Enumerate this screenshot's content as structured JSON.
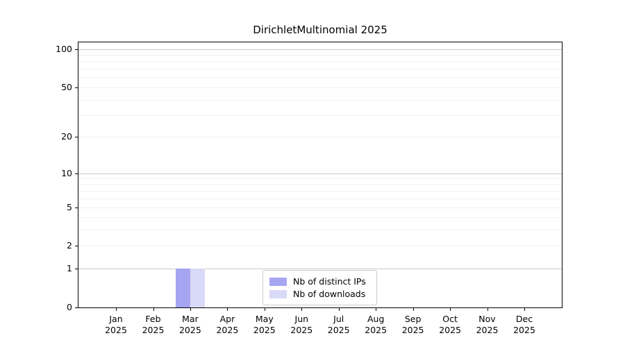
{
  "chart_data": {
    "type": "bar",
    "title": "DirichletMultinomial 2025",
    "categories": [
      "Jan 2025",
      "Feb 2025",
      "Mar 2025",
      "Apr 2025",
      "May 2025",
      "Jun 2025",
      "Jul 2025",
      "Aug 2025",
      "Sep 2025",
      "Oct 2025",
      "Nov 2025",
      "Dec 2025"
    ],
    "series": [
      {
        "name": "Nb of distinct IPs",
        "color": "#a5a5f2",
        "values": [
          0,
          0,
          1,
          0,
          0,
          0,
          0,
          0,
          0,
          0,
          0,
          0
        ]
      },
      {
        "name": "Nb of downloads",
        "color": "#d9d9f8",
        "values": [
          0,
          0,
          1,
          0,
          0,
          0,
          0,
          0,
          0,
          0,
          0,
          0
        ]
      }
    ],
    "xlabel": "",
    "ylabel": "",
    "y_scale": "log1p",
    "ylim": [
      0,
      113
    ],
    "y_ticks": [
      0,
      1,
      2,
      5,
      10,
      20,
      50,
      100
    ],
    "grid_major": [
      1,
      10,
      100
    ],
    "grid_minor": [
      2,
      3,
      4,
      5,
      6,
      7,
      8,
      9,
      20,
      30,
      40,
      50,
      60,
      70,
      80,
      90
    ],
    "legend_location": "lower center"
  },
  "colors": {
    "grid_major": "#c9c9c9",
    "grid_minor": "#f0f0f0",
    "axis": "#000000"
  }
}
